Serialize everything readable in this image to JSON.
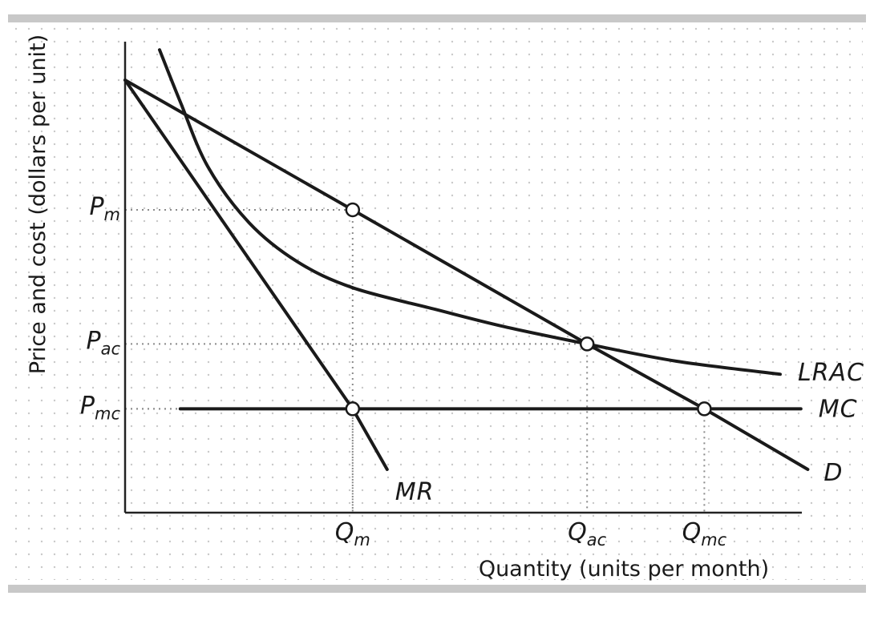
{
  "chart_data": {
    "type": "line",
    "title": "",
    "xlabel": "Quantity (units per month)",
    "ylabel": "Price and cost (dollars per unit)",
    "xlim": [
      0,
      100
    ],
    "ylim": [
      0,
      100
    ],
    "grid": "dotted background",
    "x_ticks": [
      {
        "id": "qm",
        "main": "Q",
        "sub": "m",
        "value": 33
      },
      {
        "id": "qac",
        "main": "Q",
        "sub": "ac",
        "value": 67
      },
      {
        "id": "qmc",
        "main": "Q",
        "sub": "mc",
        "value": 84
      }
    ],
    "y_ticks": [
      {
        "id": "pm",
        "main": "P",
        "sub": "m",
        "value": 70
      },
      {
        "id": "pac",
        "main": "P",
        "sub": "ac",
        "value": 39
      },
      {
        "id": "pmc",
        "main": "P",
        "sub": "mc",
        "value": 24
      }
    ],
    "series": [
      {
        "name": "D",
        "points": [
          [
            0,
            100
          ],
          [
            33,
            70
          ],
          [
            67,
            39
          ],
          [
            84,
            24
          ],
          [
            99,
            10
          ]
        ]
      },
      {
        "name": "MR",
        "points": [
          [
            0,
            100
          ],
          [
            33,
            24
          ],
          [
            38,
            10
          ]
        ]
      },
      {
        "name": "MC",
        "points": [
          [
            8,
            24
          ],
          [
            33,
            24
          ],
          [
            84,
            24
          ],
          [
            98,
            24
          ]
        ]
      },
      {
        "name": "LRAC",
        "points": [
          [
            5,
            107
          ],
          [
            8,
            95
          ],
          [
            12,
            80
          ],
          [
            18,
            67
          ],
          [
            25,
            58
          ],
          [
            33,
            52
          ],
          [
            45,
            47
          ],
          [
            55,
            43
          ],
          [
            67,
            39
          ],
          [
            80,
            35
          ],
          [
            95,
            32
          ]
        ]
      }
    ],
    "markers": [
      {
        "x": 33,
        "y": 70
      },
      {
        "x": 67,
        "y": 39
      },
      {
        "x": 33,
        "y": 24
      },
      {
        "x": 84,
        "y": 24
      }
    ],
    "guides": [
      {
        "x": 33,
        "y": 70
      },
      {
        "x": 67,
        "y": 39
      },
      {
        "x": 84,
        "y": 24
      },
      {
        "x": 33,
        "y": 24
      }
    ]
  }
}
